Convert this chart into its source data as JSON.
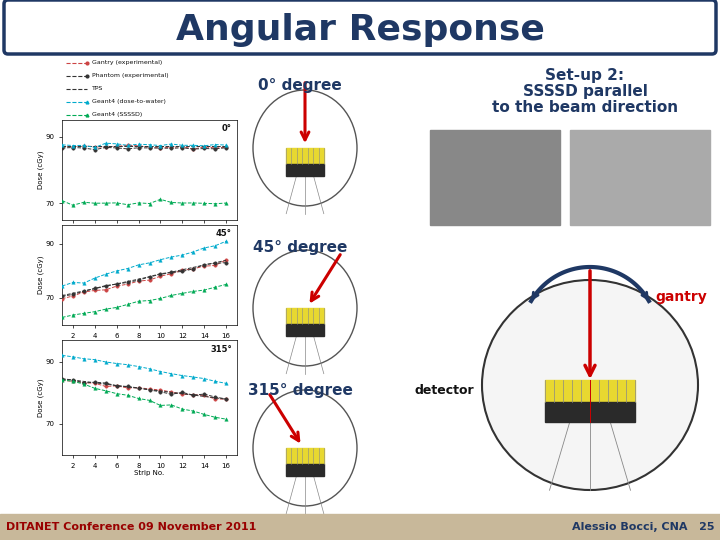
{
  "title": "Angular Response",
  "title_color": "#1F3864",
  "title_fontsize": 26,
  "title_box_edge": "#1F3864",
  "bg_color": "#ffffff",
  "footer_bg": "#C8B89A",
  "footer_left": "DITANET Conference 09 November 2011",
  "footer_right": "Alessio Bocci, CNA   25",
  "footer_left_color": "#990000",
  "footer_right_color": "#1F3864",
  "footer_fontsize": 8,
  "degree_labels": [
    "0° degree",
    "45° degree",
    "315° degree"
  ],
  "degree_label_color": "#1F3864",
  "degree_label_fontsize": 11,
  "setup_lines": [
    "Set-up 2:",
    "SSSSD parallel",
    "to the beam direction"
  ],
  "setup_color": "#1F3864",
  "setup_fontsize": 11,
  "gantry_text": "gantry",
  "gantry_color": "#cc0000",
  "detector_text": "detector",
  "detector_color": "#111111",
  "arrow_color": "#cc0000",
  "arc_color": "#1F3864",
  "legend_items": [
    {
      "label": "Gantry (experimental)",
      "color": "#cc4444",
      "marker": "o",
      "ls": "--"
    },
    {
      "label": "Phantom (experimental)",
      "color": "#444444",
      "marker": "o",
      "ls": "--"
    },
    {
      "label": "TPS",
      "color": "#444444",
      "marker": null,
      "ls": "--"
    },
    {
      "label": "Geant4 (dose-to-water)",
      "color": "#00aacc",
      "marker": "^",
      "ls": "--"
    },
    {
      "label": "Geant4 (SSSSD)",
      "color": "#00aa44",
      "marker": "^",
      "ls": "--"
    }
  ],
  "plot0_label": "0°",
  "plot45_label": "45°",
  "plot315_label": "315°",
  "yellow_color": "#e8d830",
  "dark_color": "#2a2a2a",
  "ellipse_edge": "#555555",
  "ellipse_face": "#ffffff"
}
